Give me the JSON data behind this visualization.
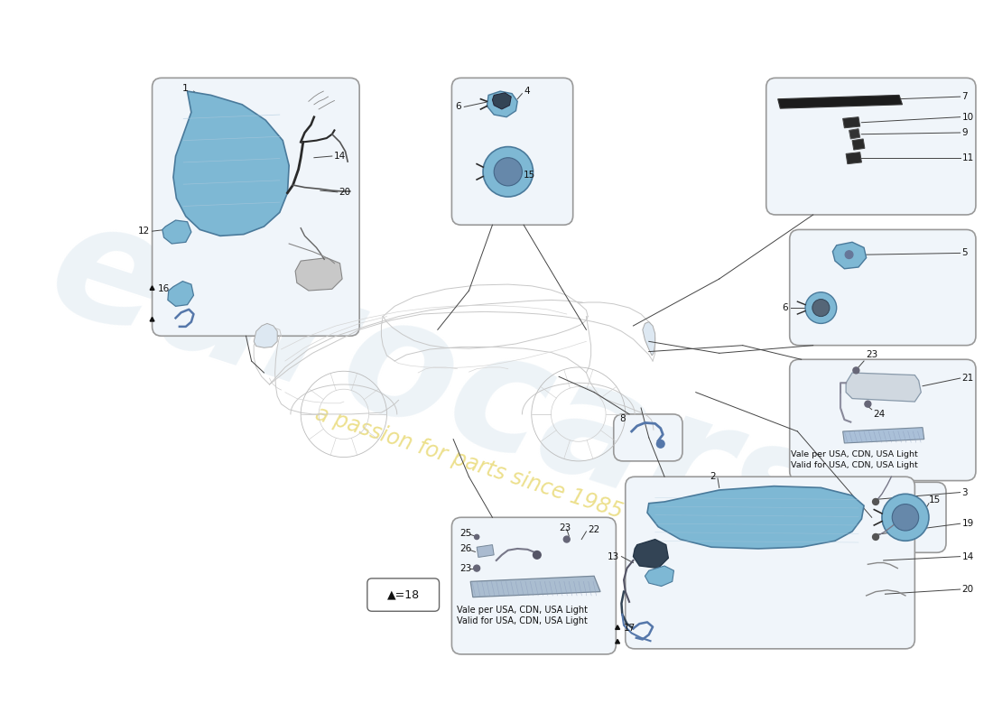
{
  "bg_color": "#ffffff",
  "box_facecolor": "#f0f5fa",
  "box_edgecolor": "#999999",
  "blue_part": "#7eb8d4",
  "blue_part_edge": "#4a7a9b",
  "dark_part": "#2a2a2a",
  "line_color": "#444444",
  "label_color": "#111111",
  "watermark_color": "#dce8f0",
  "watermark_sub_color": "#e8d870",
  "usa_note1": "Vale per USA, CDN, USA Light",
  "usa_note2": "Valid for USA, CDN, USA Light"
}
